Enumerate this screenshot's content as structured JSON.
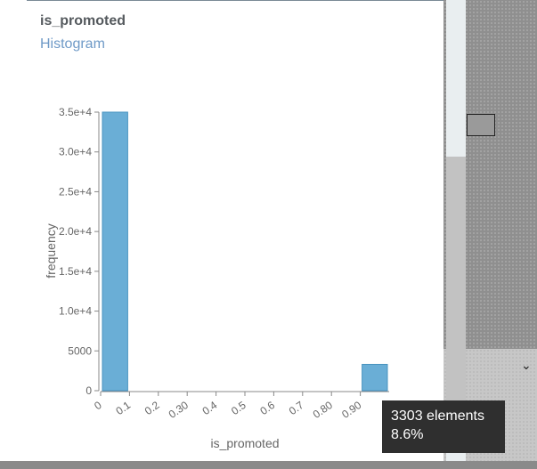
{
  "panel": {
    "title": "is_promoted",
    "subtitle": "Histogram"
  },
  "tooltip": {
    "count_text": "3303 elements",
    "percent_text": "8.6%"
  },
  "colors": {
    "bar": "#6aaed6",
    "bar_stroke": "#4a94c0",
    "axis": "#888888",
    "tick_text": "#666666"
  },
  "chart_data": {
    "type": "bar",
    "title": "",
    "xlabel": "is_promoted",
    "ylabel": "frequency",
    "ylim": [
      0,
      35000
    ],
    "xlim": [
      0,
      1
    ],
    "x_ticks": [
      "0",
      "0.1",
      "0.2",
      "0.30",
      "0.4",
      "0.5",
      "0.6",
      "0.7",
      "0.80",
      "0.90"
    ],
    "y_ticks": [
      {
        "value": 0,
        "label": "0"
      },
      {
        "value": 5000,
        "label": "5000"
      },
      {
        "value": 10000,
        "label": "1.0e+4"
      },
      {
        "value": 15000,
        "label": "1.5e+4"
      },
      {
        "value": 20000,
        "label": "2.0e+4"
      },
      {
        "value": 25000,
        "label": "2.5e+4"
      },
      {
        "value": 30000,
        "label": "3.0e+4"
      },
      {
        "value": 35000,
        "label": "3.5e+4"
      }
    ],
    "bins": [
      {
        "x0": 0.0,
        "x1": 0.1,
        "value": 35000
      },
      {
        "x0": 0.9,
        "x1": 1.0,
        "value": 3303
      }
    ]
  }
}
